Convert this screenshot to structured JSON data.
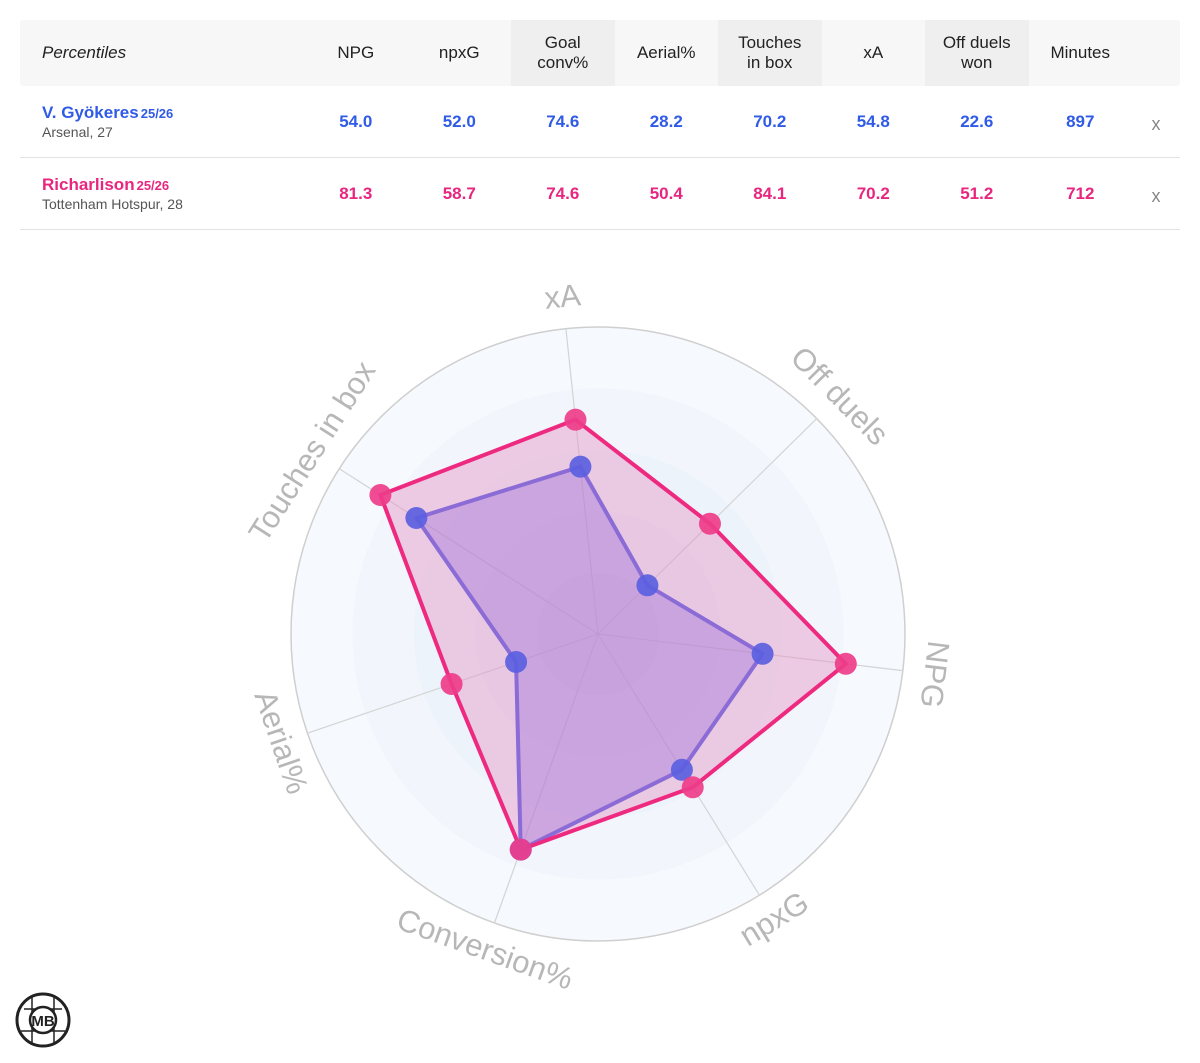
{
  "table": {
    "header_label": "Percentiles",
    "columns": [
      {
        "line1": "NPG",
        "line2": ""
      },
      {
        "line1": "npxG",
        "line2": ""
      },
      {
        "line1": "Goal",
        "line2": "conv%"
      },
      {
        "line1": "Aerial%",
        "line2": ""
      },
      {
        "line1": "Touches",
        "line2": "in box"
      },
      {
        "line1": "xA",
        "line2": ""
      },
      {
        "line1": "Off duels",
        "line2": "won"
      },
      {
        "line1": "Minutes",
        "line2": ""
      }
    ],
    "players": [
      {
        "name": "V. Gyökeres",
        "season": "25/26",
        "meta": "Arsenal, 27",
        "values": [
          "54.0",
          "52.0",
          "74.6",
          "28.2",
          "70.2",
          "54.8",
          "22.6",
          "897"
        ],
        "remove": "x",
        "color": "#2f5be6"
      },
      {
        "name": "Richarlison",
        "season": "25/26",
        "meta": "Tottenham Hotspur, 28",
        "values": [
          "81.3",
          "58.7",
          "74.6",
          "50.4",
          "84.1",
          "70.2",
          "51.2",
          "712"
        ],
        "remove": "x",
        "color": "#e8267f"
      }
    ]
  },
  "chart_data": {
    "type": "radar",
    "axes": [
      "xA",
      "Off duels",
      "NPG",
      "npxG",
      "Conversion%",
      "Aerial%",
      "Touches in box"
    ],
    "range": [
      0,
      100
    ],
    "series": [
      {
        "name": "V. Gyökeres",
        "values": [
          54.8,
          22.6,
          54.0,
          52.0,
          74.6,
          28.2,
          70.2
        ],
        "stroke": "#4f57e3",
        "fill": "#7b6ee8",
        "point": "#5b5fe0"
      },
      {
        "name": "Richarlison",
        "values": [
          70.2,
          51.2,
          81.3,
          58.7,
          74.6,
          50.4,
          84.1
        ],
        "stroke": "#ee2a80",
        "fill": "#e78ac0",
        "point": "#ee3d8a"
      }
    ]
  },
  "logo": {
    "text": "MB"
  }
}
